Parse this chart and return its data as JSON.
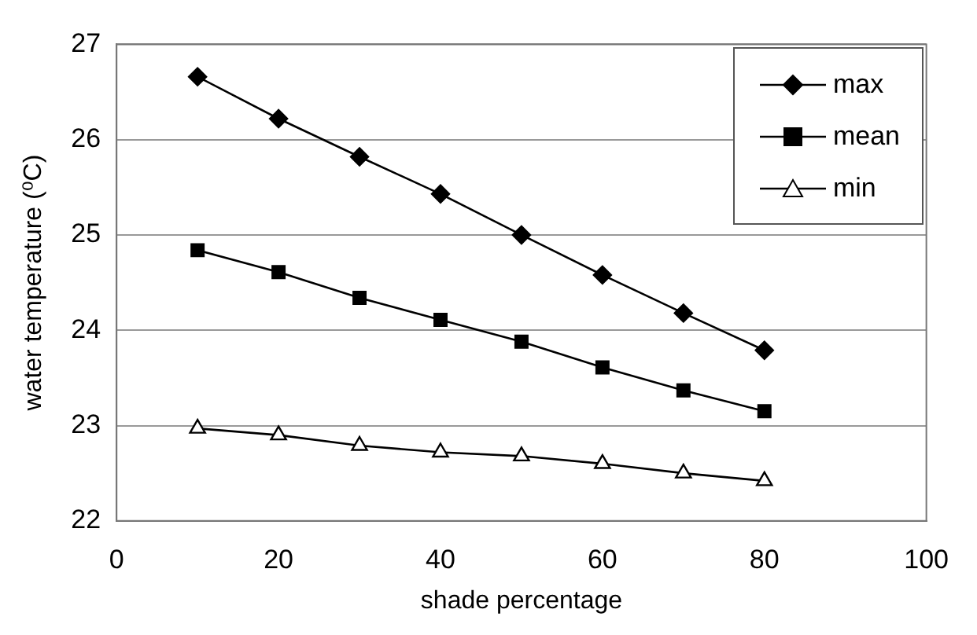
{
  "chart_data": {
    "type": "line",
    "xlabel": "shade percentage",
    "ylabel": "water temperature (⁰C)",
    "x": [
      10,
      20,
      30,
      40,
      50,
      60,
      70,
      80
    ],
    "series": [
      {
        "name": "max",
        "color": "#000000",
        "marker": "diamond",
        "values": [
          26.66,
          26.22,
          25.82,
          25.43,
          25.0,
          24.58,
          24.18,
          23.79
        ]
      },
      {
        "name": "mean",
        "color": "#000000",
        "marker": "square",
        "values": [
          24.84,
          24.61,
          24.34,
          24.11,
          23.88,
          23.61,
          23.37,
          23.15
        ]
      },
      {
        "name": "min",
        "color": "#000000",
        "marker": "triangle",
        "values": [
          22.97,
          22.9,
          22.79,
          22.72,
          22.68,
          22.6,
          22.5,
          22.42
        ]
      }
    ],
    "xlim": [
      0,
      100
    ],
    "xticks": [
      0,
      20,
      40,
      60,
      80,
      100
    ],
    "ylim": [
      22,
      27
    ],
    "yticks": [
      22,
      23,
      24,
      25,
      26,
      27
    ],
    "grid": "y",
    "legend": "top right"
  }
}
